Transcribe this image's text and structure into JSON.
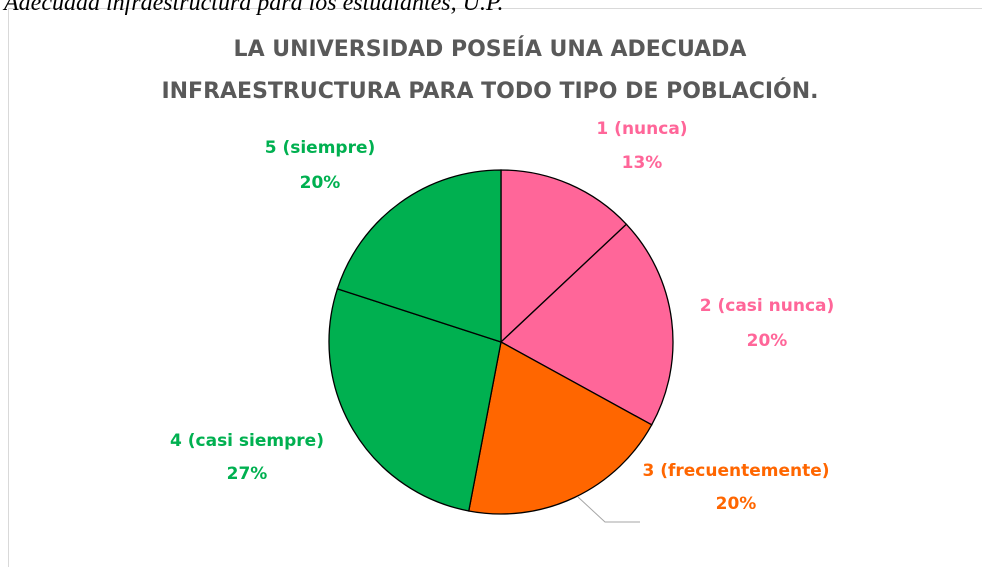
{
  "caption": "Adecuada infraestructura para los estudiantes, U.P.",
  "chart_data": {
    "type": "pie",
    "title": [
      "LA UNIVERSIDAD POSEÍA UNA ADECUADA",
      "INFRAESTRUCTURA PARA TODO TIPO DE POBLACIÓN."
    ],
    "categories": [
      "1 (nunca)",
      "2 (casi nunca)",
      "3 (frecuentemente)",
      "4 (casi siempre)",
      "5 (siempre)"
    ],
    "values": [
      13,
      20,
      20,
      27,
      20
    ],
    "value_labels": [
      "13%",
      "20%",
      "20%",
      "27%",
      "20%"
    ],
    "colors": [
      "#ff6699",
      "#ff6699",
      "#ff6600",
      "#00b050",
      "#00b050"
    ]
  }
}
